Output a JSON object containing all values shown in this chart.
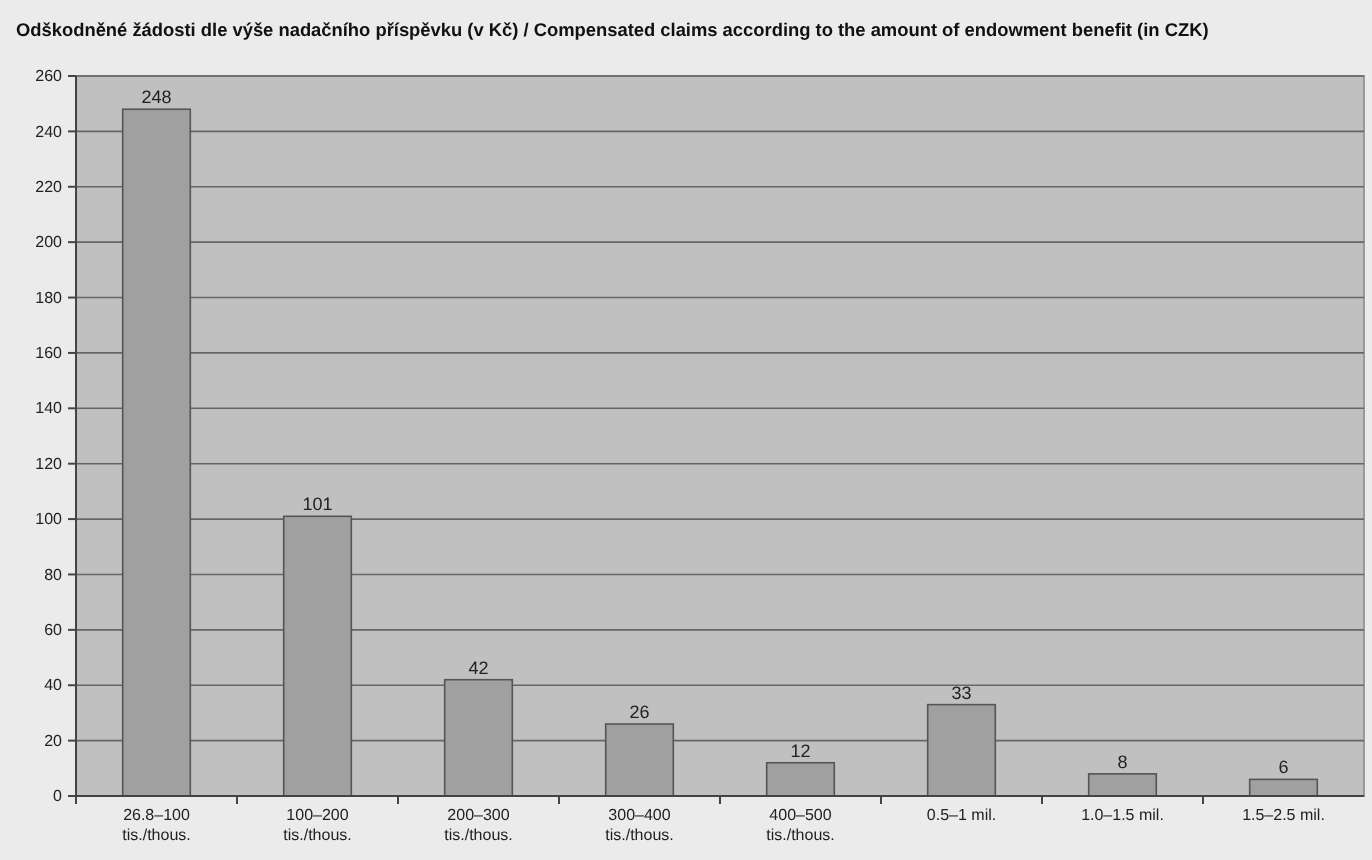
{
  "chart_data": {
    "type": "bar",
    "title": "Odškodněné žádosti dle výše nadačního příspěvku (v Kč) / Compensated claims according to the amount of endowment benefit (in CZK)",
    "categories": [
      "26.8–100\ntis./thous.",
      "100–200\ntis./thous.",
      "200–300\ntis./thous.",
      "300–400\ntis./thous.",
      "400–500\ntis./thous.",
      "0.5–1 mil.",
      "1.0–1.5 mil.",
      "1.5–2.5 mil."
    ],
    "values": [
      248,
      101,
      42,
      26,
      12,
      33,
      8,
      6
    ],
    "color": "#a0a0a0",
    "ylim": [
      0,
      260
    ],
    "yticks": [
      0,
      20,
      40,
      60,
      80,
      100,
      120,
      140,
      160,
      180,
      200,
      220,
      240,
      260
    ],
    "grid": "y",
    "data_labels": true
  }
}
